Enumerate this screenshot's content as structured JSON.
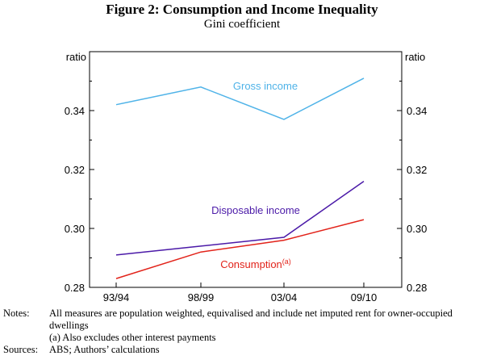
{
  "figure": {
    "title": "Figure 2: Consumption and Income Inequality",
    "subtitle": "Gini coefficient"
  },
  "chart_data": {
    "type": "line",
    "title": "Figure 2: Consumption and Income Inequality",
    "subtitle": "Gini coefficient",
    "categories": [
      "93/94",
      "98/99",
      "03/04",
      "09/10"
    ],
    "ylabel_left": "ratio",
    "ylabel_right": "ratio",
    "ylim": [
      0.28,
      0.36
    ],
    "yticks": [
      0.28,
      0.3,
      0.32,
      0.34
    ],
    "ytick_labels": [
      "0.28",
      "0.30",
      "0.32",
      "0.34"
    ],
    "grid": false,
    "series": [
      {
        "name": "Gross income",
        "color": "#4fb3e8",
        "values": [
          0.342,
          0.348,
          0.337,
          0.351
        ]
      },
      {
        "name": "Disposable income",
        "color": "#4b1aa8",
        "values": [
          0.291,
          0.294,
          0.297,
          0.316
        ]
      },
      {
        "name": "Consumption",
        "superscript": "(a)",
        "color": "#e2231a",
        "values": [
          0.283,
          0.292,
          0.296,
          0.303
        ]
      }
    ]
  },
  "notes": {
    "label": "Notes:",
    "lines": [
      "All measures are population weighted, equivalised and include net imputed rent for owner-occupied dwellings",
      "(a) Also excludes other interest payments"
    ]
  },
  "sources": {
    "label": "Sources:",
    "text": "ABS; Authors’ calculations"
  }
}
